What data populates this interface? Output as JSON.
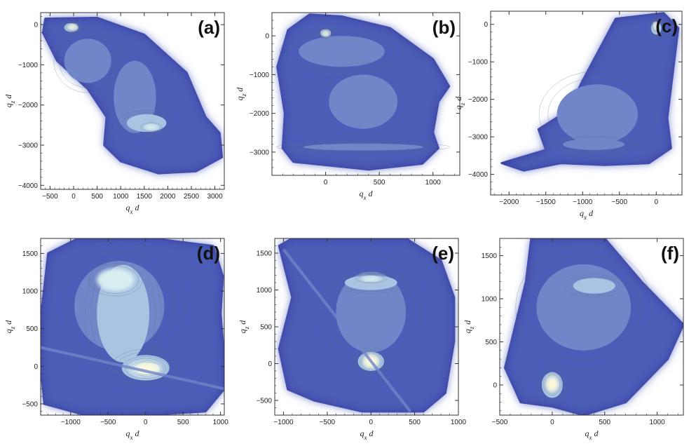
{
  "colors": {
    "outer": "#3a3fa5",
    "level1": "#4e5fb8",
    "level2": "#7086c8",
    "level3": "#a9c3e3",
    "level4": "#d8eef0",
    "peak": "#fbf8dc",
    "contour": "#5b7180"
  },
  "chart_data": [
    {
      "type": "heatmap",
      "panel_label": "(a)",
      "xlabel": "q_x d",
      "ylabel": "q_z d",
      "xlim": [
        -700,
        3200
      ],
      "ylim": [
        -4100,
        300
      ],
      "xticks": [
        -500,
        0,
        500,
        1000,
        1500,
        2000,
        2500,
        3000
      ],
      "yticks": [
        -4000,
        -3000,
        -2000,
        -1000,
        0
      ],
      "grid": false,
      "outline": [
        [
          -600,
          150
        ],
        [
          500,
          170
        ],
        [
          1500,
          -250
        ],
        [
          2400,
          -1200
        ],
        [
          2800,
          -2300
        ],
        [
          3100,
          -2700
        ],
        [
          3150,
          -3300
        ],
        [
          2600,
          -3650
        ],
        [
          1800,
          -3700
        ],
        [
          1000,
          -3400
        ],
        [
          650,
          -3000
        ],
        [
          700,
          -2300
        ],
        [
          300,
          -1600
        ],
        [
          -350,
          -900
        ],
        [
          -650,
          -200
        ]
      ],
      "blobs": [
        {
          "x": 300,
          "y": -900,
          "rx": 500,
          "ry": 550,
          "level": 2
        },
        {
          "x": 1300,
          "y": -1800,
          "rx": 450,
          "ry": 900,
          "level": 2
        },
        {
          "x": 1550,
          "y": -2450,
          "rx": 420,
          "ry": 220,
          "level": 3
        },
        {
          "x": 1650,
          "y": -2550,
          "rx": 160,
          "ry": 80,
          "level": 4
        },
        {
          "x": -50,
          "y": -70,
          "rx": 150,
          "ry": 110,
          "level": 3
        },
        {
          "x": -30,
          "y": -60,
          "rx": 100,
          "ry": 70,
          "level": 5
        }
      ]
    },
    {
      "type": "heatmap",
      "panel_label": "(b)",
      "xlabel": "q_x d",
      "ylabel": "q_z d",
      "xlim": [
        -500,
        1250
      ],
      "ylim": [
        -3600,
        600
      ],
      "xticks": [
        0,
        500,
        1000
      ],
      "yticks": [
        -3000,
        -2000,
        -1000,
        0
      ],
      "grid": false,
      "outline": [
        [
          -350,
          150
        ],
        [
          -150,
          550
        ],
        [
          150,
          500
        ],
        [
          600,
          200
        ],
        [
          1000,
          -600
        ],
        [
          1150,
          -1300
        ],
        [
          1050,
          -1700
        ],
        [
          1000,
          -2500
        ],
        [
          1050,
          -2900
        ],
        [
          900,
          -3300
        ],
        [
          400,
          -3450
        ],
        [
          -300,
          -3250
        ],
        [
          -400,
          -2900
        ],
        [
          -380,
          -2000
        ],
        [
          -450,
          -800
        ]
      ],
      "blobs": [
        {
          "x": 150,
          "y": -400,
          "rx": 400,
          "ry": 400,
          "level": 2
        },
        {
          "x": 350,
          "y": -1700,
          "rx": 320,
          "ry": 700,
          "level": 2
        },
        {
          "x": 350,
          "y": -2870,
          "rx": 560,
          "ry": 90,
          "level": 2
        },
        {
          "x": 0,
          "y": 70,
          "rx": 50,
          "ry": 100,
          "level": 3
        },
        {
          "x": 0,
          "y": 60,
          "rx": 30,
          "ry": 65,
          "level": 5
        }
      ]
    },
    {
      "type": "heatmap",
      "panel_label": "(c)",
      "xlabel": "q_x d",
      "ylabel": "q_z d",
      "xlim": [
        -2250,
        350
      ],
      "ylim": [
        -4550,
        350
      ],
      "xticks": [
        -2000,
        -1500,
        -1000,
        -500,
        0
      ],
      "yticks": [
        -4000,
        -3000,
        -2000,
        -1000,
        0
      ],
      "grid": false,
      "outline": [
        [
          -550,
          150
        ],
        [
          100,
          300
        ],
        [
          300,
          -100
        ],
        [
          250,
          -900
        ],
        [
          150,
          -2500
        ],
        [
          200,
          -3300
        ],
        [
          -100,
          -3700
        ],
        [
          -700,
          -3750
        ],
        [
          -1300,
          -3700
        ],
        [
          -1800,
          -3900
        ],
        [
          -2100,
          -3700
        ],
        [
          -1500,
          -3350
        ],
        [
          -1600,
          -2800
        ],
        [
          -1200,
          -2300
        ],
        [
          -1000,
          -1500
        ]
      ],
      "blobs": [
        {
          "x": -800,
          "y": -2400,
          "rx": 550,
          "ry": 800,
          "level": 2
        },
        {
          "x": -850,
          "y": -3200,
          "rx": 420,
          "ry": 150,
          "level": 2
        },
        {
          "x": 0,
          "y": -100,
          "rx": 70,
          "ry": 170,
          "level": 3
        },
        {
          "x": -10,
          "y": -50,
          "rx": 30,
          "ry": 100,
          "level": 5
        }
      ]
    },
    {
      "type": "heatmap",
      "panel_label": "(d)",
      "xlabel": "q_x d",
      "ylabel": "q_z d",
      "xlim": [
        -1400,
        1050
      ],
      "ylim": [
        -650,
        1700
      ],
      "xticks": [
        -1000,
        -500,
        0,
        500,
        1000
      ],
      "yticks": [
        -500,
        0,
        500,
        1000,
        1500
      ],
      "grid": false,
      "outline": [
        [
          -1300,
          1500
        ],
        [
          -900,
          1700
        ],
        [
          100,
          1700
        ],
        [
          900,
          1600
        ],
        [
          1030,
          1200
        ],
        [
          1000,
          700
        ],
        [
          1050,
          100
        ],
        [
          1050,
          -300
        ],
        [
          800,
          -600
        ],
        [
          0,
          -650
        ],
        [
          -800,
          -650
        ],
        [
          -1350,
          -500
        ],
        [
          -1400,
          0
        ],
        [
          -1380,
          800
        ]
      ],
      "blobs": [
        {
          "x": -350,
          "y": 800,
          "rx": 600,
          "ry": 600,
          "level": 2
        },
        {
          "x": -300,
          "y": 700,
          "rx": 350,
          "ry": 650,
          "level": 3
        },
        {
          "x": -400,
          "y": 1150,
          "rx": 250,
          "ry": 150,
          "level": 4
        },
        {
          "x": 0,
          "y": -20,
          "rx": 320,
          "ry": 170,
          "level": 3
        },
        {
          "x": 0,
          "y": -30,
          "rx": 220,
          "ry": 110,
          "level": 4
        },
        {
          "x": 20,
          "y": -30,
          "rx": 150,
          "ry": 70,
          "level": 5
        }
      ],
      "streaks": [
        [
          [
            -1400,
            250
          ],
          [
            1050,
            -300
          ]
        ]
      ]
    },
    {
      "type": "heatmap",
      "panel_label": "(e)",
      "xlabel": "q_x d",
      "ylabel": "q_z d",
      "xlim": [
        -1100,
        1000
      ],
      "ylim": [
        -700,
        1700
      ],
      "xticks": [
        -1000,
        -500,
        0,
        500,
        1000
      ],
      "yticks": [
        -500,
        0,
        500,
        1000,
        1500
      ],
      "grid": false,
      "outline": [
        [
          -900,
          1700
        ],
        [
          400,
          1700
        ],
        [
          800,
          1400
        ],
        [
          950,
          900
        ],
        [
          950,
          300
        ],
        [
          850,
          -400
        ],
        [
          600,
          -650
        ],
        [
          -100,
          -650
        ],
        [
          -650,
          -500
        ],
        [
          -950,
          -350
        ],
        [
          -1050,
          200
        ],
        [
          -900,
          900
        ],
        [
          -1050,
          1600
        ]
      ],
      "blobs": [
        {
          "x": 0,
          "y": 700,
          "rx": 400,
          "ry": 550,
          "level": 2
        },
        {
          "x": 0,
          "y": 1100,
          "rx": 300,
          "ry": 100,
          "level": 3
        },
        {
          "x": 0,
          "y": 1150,
          "rx": 120,
          "ry": 40,
          "level": 4
        },
        {
          "x": 0,
          "y": 30,
          "rx": 150,
          "ry": 130,
          "level": 3
        },
        {
          "x": 0,
          "y": 30,
          "rx": 90,
          "ry": 90,
          "level": 5
        }
      ],
      "streaks": [
        [
          [
            -1000,
            1550
          ],
          [
            450,
            -650
          ]
        ]
      ]
    },
    {
      "type": "heatmap",
      "panel_label": "(f)",
      "xlabel": "q_x d",
      "ylabel": "q_z d",
      "xlim": [
        -500,
        1250
      ],
      "ylim": [
        -350,
        1700
      ],
      "xticks": [
        -500,
        0,
        500,
        1000
      ],
      "yticks": [
        0,
        500,
        1000,
        1500
      ],
      "grid": false,
      "outline": [
        [
          -200,
          1700
        ],
        [
          500,
          1700
        ],
        [
          850,
          1200
        ],
        [
          1250,
          700
        ],
        [
          1100,
          300
        ],
        [
          700,
          -200
        ],
        [
          300,
          -350
        ],
        [
          0,
          -250
        ],
        [
          -300,
          -200
        ],
        [
          -450,
          200
        ],
        [
          -350,
          700
        ],
        [
          -250,
          1200
        ]
      ],
      "blobs": [
        {
          "x": 300,
          "y": 900,
          "rx": 450,
          "ry": 500,
          "level": 2
        },
        {
          "x": 400,
          "y": 1150,
          "rx": 200,
          "ry": 90,
          "level": 3
        },
        {
          "x": 0,
          "y": 0,
          "rx": 100,
          "ry": 150,
          "level": 3
        },
        {
          "x": 0,
          "y": 10,
          "rx": 60,
          "ry": 90,
          "level": 5
        }
      ]
    }
  ]
}
